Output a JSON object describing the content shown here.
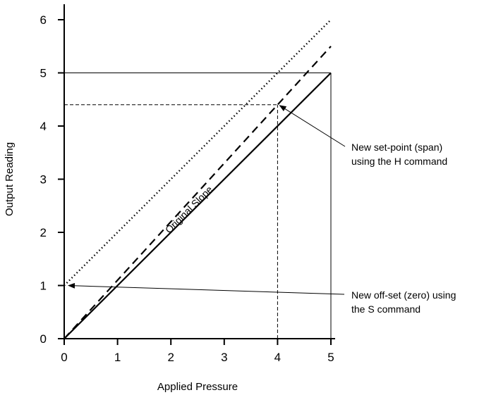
{
  "chart_data": {
    "type": "line",
    "xlabel": "Applied Pressure",
    "ylabel": "Output Reading",
    "xlim": [
      0,
      5
    ],
    "ylim": [
      0,
      6
    ],
    "x_ticks": [
      "0",
      "1",
      "2",
      "3",
      "4",
      "5"
    ],
    "y_ticks": [
      "0",
      "1",
      "2",
      "3",
      "4",
      "5",
      "6"
    ],
    "grid": false,
    "series": [
      {
        "name": "Original Slope",
        "style": "solid",
        "x": [
          0,
          5
        ],
        "y": [
          0,
          5
        ]
      },
      {
        "style": "dashed",
        "x": [
          0,
          5
        ],
        "y": [
          0,
          5.5
        ]
      },
      {
        "style": "dotted",
        "x": [
          0,
          5
        ],
        "y": [
          1,
          6
        ]
      }
    ],
    "reference_lines": {
      "h5": {
        "y": 5,
        "x": [
          0,
          5
        ]
      },
      "v5": {
        "x": 5,
        "y": [
          0,
          5
        ]
      },
      "h44": {
        "y": 4.4,
        "x": [
          0,
          4
        ]
      },
      "v4": {
        "x": 4,
        "y": [
          0,
          4.4
        ]
      }
    },
    "annotations": [
      {
        "lines": [
          "New set-point (span)",
          "using the H command"
        ],
        "target": {
          "x": 4,
          "y": 4.4
        }
      },
      {
        "lines": [
          "New off-set (zero) using",
          "the S command"
        ],
        "target": {
          "x": 0,
          "y": 1
        }
      }
    ]
  }
}
